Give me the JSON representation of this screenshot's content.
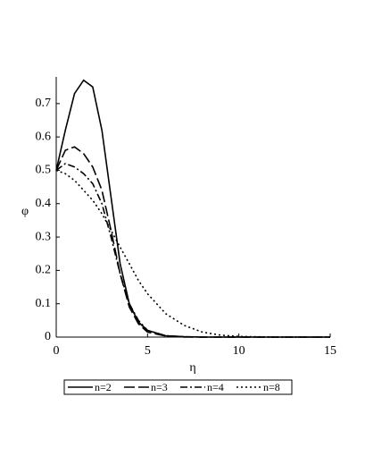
{
  "chart_data": {
    "type": "line",
    "x_label": "η",
    "y_label": "φ",
    "x": [
      0,
      0.5,
      1,
      1.5,
      2,
      2.5,
      3,
      3.5,
      4,
      4.5,
      5,
      6,
      7,
      8,
      9,
      10,
      12,
      15
    ],
    "series": [
      {
        "name": "n=2",
        "color": "#000000",
        "dash": "solid",
        "values": [
          0.5,
          0.62,
          0.73,
          0.77,
          0.75,
          0.62,
          0.42,
          0.22,
          0.1,
          0.045,
          0.02,
          0.004,
          0.001,
          0,
          0,
          0,
          0,
          0
        ]
      },
      {
        "name": "n=3",
        "color": "#000000",
        "dash": "dash",
        "values": [
          0.5,
          0.56,
          0.57,
          0.55,
          0.51,
          0.44,
          0.32,
          0.19,
          0.09,
          0.04,
          0.015,
          0.003,
          0,
          0,
          0,
          0,
          0,
          0
        ]
      },
      {
        "name": "n=4",
        "color": "#000000",
        "dash": "dashdot",
        "values": [
          0.5,
          0.52,
          0.51,
          0.49,
          0.46,
          0.4,
          0.3,
          0.19,
          0.1,
          0.05,
          0.02,
          0.004,
          0.001,
          0,
          0,
          0,
          0,
          0
        ]
      },
      {
        "name": "n=8",
        "color": "#000000",
        "dash": "dot",
        "values": [
          0.5,
          0.49,
          0.47,
          0.44,
          0.41,
          0.37,
          0.32,
          0.27,
          0.22,
          0.17,
          0.13,
          0.07,
          0.035,
          0.015,
          0.006,
          0.002,
          0,
          0
        ]
      }
    ],
    "xlim": [
      0,
      15
    ],
    "xticks": [
      0,
      5,
      10,
      15
    ],
    "ylim": [
      0,
      0.78
    ],
    "yticks": [
      0,
      0.1,
      0.2,
      0.3,
      0.4,
      0.5,
      0.6,
      0.7
    ],
    "grid": false
  }
}
